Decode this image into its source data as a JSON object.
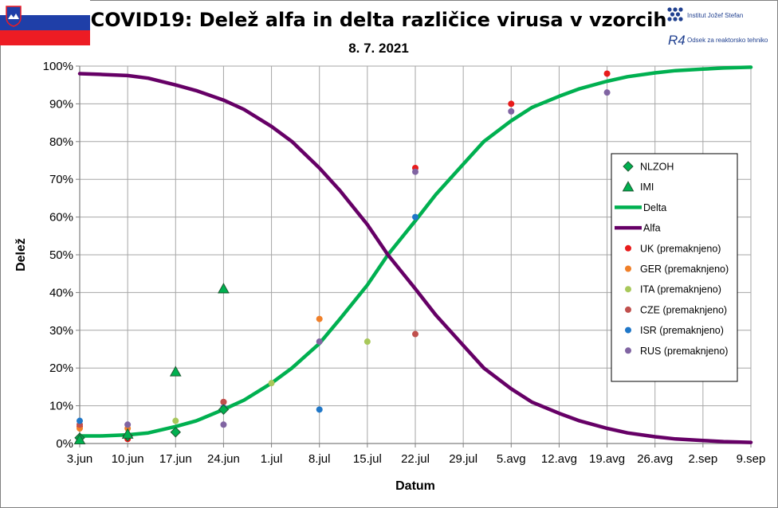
{
  "header": {
    "institute_name": "Institut Jožef Stefan",
    "department": "Odsek za reaktorsko tehniko",
    "r4_logo_text": "R4"
  },
  "chart_data": {
    "type": "line",
    "title": "COVID19: Delež alfa in delta različice virusa v vzorcih",
    "subtitle": "8. 7. 2021",
    "xlabel": "Datum",
    "ylabel": "Delež",
    "x_ticks": [
      "3.jun",
      "10.jun",
      "17.jun",
      "24.jun",
      "1.jul",
      "8.jul",
      "15.jul",
      "22.jul",
      "29.jul",
      "5.avg",
      "12.avg",
      "19.avg",
      "26.avg",
      "2.sep",
      "9.sep"
    ],
    "y_ticks": [
      "0%",
      "10%",
      "20%",
      "30%",
      "40%",
      "50%",
      "60%",
      "70%",
      "80%",
      "90%",
      "100%"
    ],
    "xlim": [
      "2021-06-03",
      "2021-09-09"
    ],
    "ylim": [
      0,
      100
    ],
    "grid": true,
    "legend_position": "right",
    "series": [
      {
        "name": "Delta",
        "kind": "line",
        "color": "#00B050",
        "points": [
          [
            "2021-06-03",
            2
          ],
          [
            "2021-06-06",
            2
          ],
          [
            "2021-06-10",
            2.3
          ],
          [
            "2021-06-13",
            2.8
          ],
          [
            "2021-06-17",
            4.5
          ],
          [
            "2021-06-20",
            6
          ],
          [
            "2021-06-24",
            9
          ],
          [
            "2021-06-27",
            11.5
          ],
          [
            "2021-07-01",
            16
          ],
          [
            "2021-07-04",
            20
          ],
          [
            "2021-07-08",
            26.5
          ],
          [
            "2021-07-11",
            33
          ],
          [
            "2021-07-15",
            42
          ],
          [
            "2021-07-18",
            50
          ],
          [
            "2021-07-22",
            59
          ],
          [
            "2021-07-25",
            66
          ],
          [
            "2021-07-29",
            74
          ],
          [
            "2021-08-01",
            80
          ],
          [
            "2021-08-05",
            85.5
          ],
          [
            "2021-08-08",
            89
          ],
          [
            "2021-08-12",
            92
          ],
          [
            "2021-08-15",
            94
          ],
          [
            "2021-08-19",
            96
          ],
          [
            "2021-08-22",
            97.2
          ],
          [
            "2021-08-26",
            98.2
          ],
          [
            "2021-08-29",
            98.8
          ],
          [
            "2021-09-02",
            99.2
          ],
          [
            "2021-09-05",
            99.5
          ],
          [
            "2021-09-09",
            99.7
          ]
        ]
      },
      {
        "name": "Alfa",
        "kind": "line",
        "color": "#660066",
        "points": [
          [
            "2021-06-03",
            98
          ],
          [
            "2021-06-06",
            97.8
          ],
          [
            "2021-06-10",
            97.5
          ],
          [
            "2021-06-13",
            96.8
          ],
          [
            "2021-06-17",
            95
          ],
          [
            "2021-06-20",
            93.5
          ],
          [
            "2021-06-24",
            91
          ],
          [
            "2021-06-27",
            88.5
          ],
          [
            "2021-07-01",
            84
          ],
          [
            "2021-07-04",
            80
          ],
          [
            "2021-07-08",
            73
          ],
          [
            "2021-07-11",
            67
          ],
          [
            "2021-07-15",
            58
          ],
          [
            "2021-07-18",
            50
          ],
          [
            "2021-07-22",
            41
          ],
          [
            "2021-07-25",
            34
          ],
          [
            "2021-07-29",
            26
          ],
          [
            "2021-08-01",
            20
          ],
          [
            "2021-08-05",
            14.5
          ],
          [
            "2021-08-08",
            11
          ],
          [
            "2021-08-12",
            8
          ],
          [
            "2021-08-15",
            6
          ],
          [
            "2021-08-19",
            4
          ],
          [
            "2021-08-22",
            2.8
          ],
          [
            "2021-08-26",
            1.8
          ],
          [
            "2021-08-29",
            1.2
          ],
          [
            "2021-09-02",
            0.8
          ],
          [
            "2021-09-05",
            0.5
          ],
          [
            "2021-09-09",
            0.3
          ]
        ]
      },
      {
        "name": "NLZOH",
        "kind": "diamond",
        "color": "#00B050",
        "points": [
          [
            "2021-06-03",
            1.5
          ],
          [
            "2021-06-10",
            2
          ],
          [
            "2021-06-17",
            3
          ],
          [
            "2021-06-24",
            9
          ]
        ]
      },
      {
        "name": "IMI",
        "kind": "triangle",
        "color": "#00B050",
        "points": [
          [
            "2021-06-03",
            1
          ],
          [
            "2021-06-10",
            2.5
          ],
          [
            "2021-06-17",
            19
          ],
          [
            "2021-06-24",
            41
          ]
        ]
      },
      {
        "name": "UK (premaknjeno)",
        "kind": "dot",
        "color": "#E81B1B",
        "points": [
          [
            "2021-06-03",
            4.5
          ],
          [
            "2021-06-10",
            1.2
          ],
          [
            "2021-06-24",
            11
          ],
          [
            "2021-07-22",
            73
          ],
          [
            "2021-08-05",
            90
          ],
          [
            "2021-08-19",
            98
          ]
        ]
      },
      {
        "name": "GER (premaknjeno)",
        "kind": "dot",
        "color": "#F07F28",
        "points": [
          [
            "2021-06-03",
            4
          ],
          [
            "2021-06-10",
            4
          ],
          [
            "2021-07-08",
            33
          ]
        ]
      },
      {
        "name": "ITA (premaknjeno)",
        "kind": "dot",
        "color": "#A8C85A",
        "points": [
          [
            "2021-06-17",
            6
          ],
          [
            "2021-07-01",
            16
          ],
          [
            "2021-07-15",
            27
          ]
        ]
      },
      {
        "name": "CZE (premaknjeno)",
        "kind": "dot",
        "color": "#C0504D",
        "points": [
          [
            "2021-06-03",
            5
          ],
          [
            "2021-06-24",
            11
          ],
          [
            "2021-07-22",
            29
          ]
        ]
      },
      {
        "name": "ISR (premaknjeno)",
        "kind": "dot",
        "color": "#1F77C8",
        "points": [
          [
            "2021-06-03",
            6
          ],
          [
            "2021-06-24",
            9.5
          ],
          [
            "2021-07-08",
            9
          ],
          [
            "2021-07-22",
            60
          ]
        ]
      },
      {
        "name": "RUS (premaknjeno)",
        "kind": "dot",
        "color": "#8064A2",
        "points": [
          [
            "2021-06-10",
            5
          ],
          [
            "2021-06-24",
            5
          ],
          [
            "2021-07-08",
            27
          ],
          [
            "2021-07-22",
            72
          ],
          [
            "2021-08-05",
            88
          ],
          [
            "2021-08-19",
            93
          ]
        ]
      }
    ]
  }
}
